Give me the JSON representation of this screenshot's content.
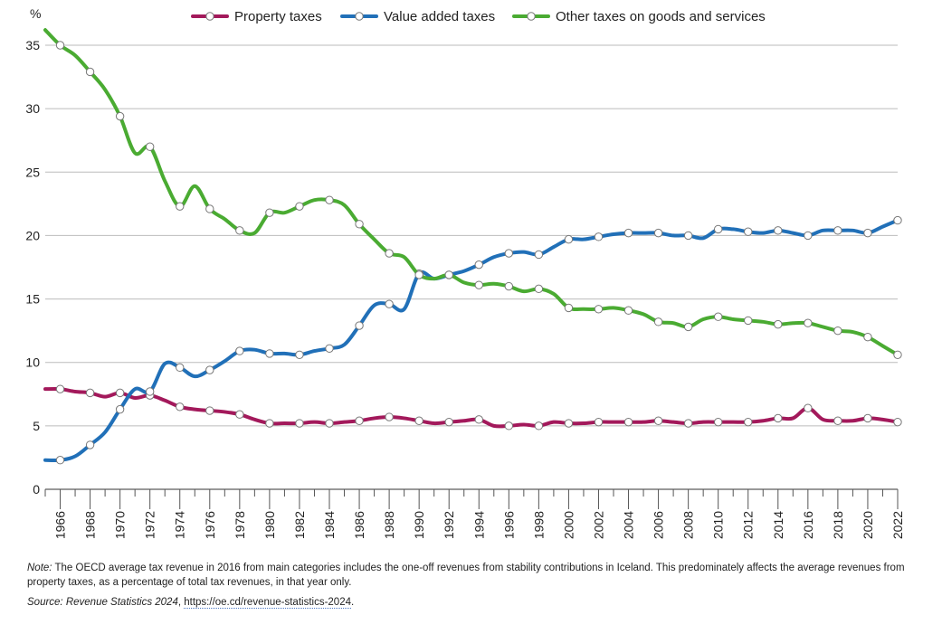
{
  "chart_data": {
    "type": "line",
    "ylabel": "%",
    "ylim": [
      0,
      35
    ],
    "yticks": [
      0,
      5,
      10,
      15,
      20,
      25,
      30,
      35
    ],
    "grid": true,
    "legend": "top",
    "x": [
      1965,
      1966,
      1967,
      1968,
      1969,
      1970,
      1971,
      1972,
      1973,
      1974,
      1975,
      1976,
      1977,
      1978,
      1979,
      1980,
      1981,
      1982,
      1983,
      1984,
      1985,
      1986,
      1987,
      1988,
      1989,
      1990,
      1991,
      1992,
      1993,
      1994,
      1995,
      1996,
      1997,
      1998,
      1999,
      2000,
      2001,
      2002,
      2003,
      2004,
      2005,
      2006,
      2007,
      2008,
      2009,
      2010,
      2011,
      2012,
      2013,
      2014,
      2015,
      2016,
      2017,
      2018,
      2019,
      2020,
      2021,
      2022
    ],
    "xticks": [
      1966,
      1968,
      1970,
      1972,
      1974,
      1976,
      1978,
      1980,
      1982,
      1984,
      1986,
      1988,
      1990,
      1992,
      1994,
      1996,
      1998,
      2000,
      2002,
      2004,
      2006,
      2008,
      2010,
      2012,
      2014,
      2016,
      2018,
      2020,
      2022
    ],
    "series": [
      {
        "name": "Property taxes",
        "color": "#a3195b",
        "values": [
          7.9,
          7.9,
          7.7,
          7.6,
          7.3,
          7.6,
          7.2,
          7.4,
          7.0,
          6.5,
          6.3,
          6.2,
          6.1,
          5.9,
          5.5,
          5.2,
          5.2,
          5.2,
          5.3,
          5.2,
          5.3,
          5.4,
          5.6,
          5.7,
          5.6,
          5.4,
          5.2,
          5.3,
          5.4,
          5.5,
          5.0,
          5.0,
          5.1,
          5.0,
          5.3,
          5.2,
          5.2,
          5.3,
          5.3,
          5.3,
          5.3,
          5.4,
          5.3,
          5.2,
          5.3,
          5.3,
          5.3,
          5.3,
          5.4,
          5.6,
          5.6,
          6.4,
          5.5,
          5.4,
          5.4,
          5.6,
          5.5,
          5.3
        ]
      },
      {
        "name": "Value added taxes",
        "color": "#2170b8",
        "values": [
          2.3,
          2.3,
          2.6,
          3.5,
          4.5,
          6.3,
          7.9,
          7.7,
          9.9,
          9.6,
          8.9,
          9.4,
          10.1,
          10.9,
          11.0,
          10.7,
          10.7,
          10.6,
          10.9,
          11.1,
          11.4,
          12.9,
          14.5,
          14.6,
          14.2,
          17.0,
          16.6,
          16.9,
          17.2,
          17.7,
          18.3,
          18.6,
          18.7,
          18.5,
          19.1,
          19.7,
          19.7,
          19.9,
          20.1,
          20.2,
          20.2,
          20.2,
          20.0,
          20.0,
          19.8,
          20.5,
          20.5,
          20.3,
          20.2,
          20.4,
          20.2,
          20.0,
          20.4,
          20.4,
          20.4,
          20.2,
          20.7,
          21.2
        ]
      },
      {
        "name": "Other taxes on goods and services",
        "color": "#4aab32",
        "values": [
          36.2,
          35.0,
          34.2,
          32.9,
          31.5,
          29.4,
          26.5,
          27.0,
          24.3,
          22.3,
          23.9,
          22.1,
          21.3,
          20.4,
          20.2,
          21.8,
          21.8,
          22.3,
          22.8,
          22.8,
          22.4,
          20.9,
          19.7,
          18.6,
          18.3,
          16.9,
          16.6,
          16.9,
          16.3,
          16.1,
          16.2,
          16.0,
          15.6,
          15.8,
          15.4,
          14.3,
          14.2,
          14.2,
          14.3,
          14.1,
          13.8,
          13.2,
          13.1,
          12.8,
          13.4,
          13.6,
          13.4,
          13.3,
          13.2,
          13.0,
          13.1,
          13.1,
          12.8,
          12.5,
          12.4,
          12.0,
          11.3,
          10.6
        ]
      }
    ]
  },
  "note": {
    "label": "Note:",
    "text": " The OECD average tax revenue in 2016 from main categories includes the one-off revenues from stability contributions in Iceland. This predominately affects the average revenues from property taxes, as a percentage of total tax revenues, in that year only."
  },
  "source": {
    "label": "Source: Revenue Statistics 2024",
    "sep": ", ",
    "link": "https://oe.cd/revenue-statistics-2024",
    "end": "."
  }
}
